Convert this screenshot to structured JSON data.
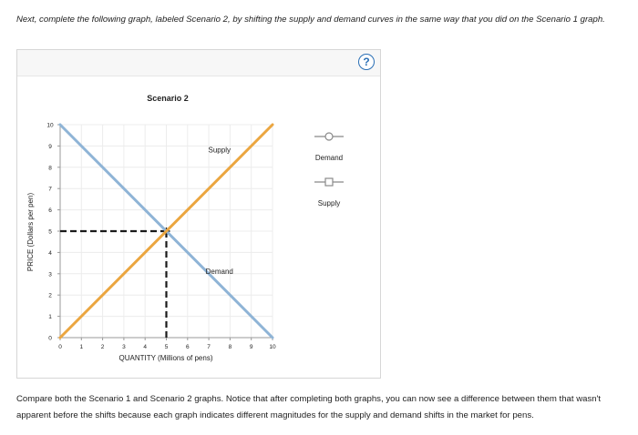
{
  "instructions": "Next, complete the following graph, labeled Scenario 2, by shifting the supply and demand curves in the same way that you did on the Scenario 1 graph.",
  "help_button": "?",
  "footer": "Compare both the Scenario 1 and Scenario 2 graphs. Notice that after completing both graphs, you can now see a difference between them that wasn't apparent before the shifts because each graph indicates different magnitudes for the supply and demand shifts in the market for pens.",
  "colors": {
    "demand": "#8fb4d6",
    "supply": "#eba640",
    "dashed": "#1a1a1a",
    "grid": "#ececec",
    "axis": "#999999"
  },
  "chart_data": {
    "type": "line",
    "title": "Scenario 2",
    "xlabel": "QUANTITY (Millions of pens)",
    "ylabel": "PRICE (Dollars per pen)",
    "xlim": [
      0,
      10
    ],
    "ylim": [
      0,
      10
    ],
    "x_ticks": [
      0,
      1,
      2,
      3,
      4,
      5,
      6,
      7,
      8,
      9,
      10
    ],
    "y_ticks": [
      0,
      1,
      2,
      3,
      4,
      5,
      6,
      7,
      8,
      9,
      10
    ],
    "grid": true,
    "series": [
      {
        "name": "Demand",
        "x": [
          0,
          10
        ],
        "y": [
          10,
          0
        ],
        "color": "#8fb4d6",
        "label": "Demand",
        "label_at": [
          7.5,
          3
        ]
      },
      {
        "name": "Supply",
        "x": [
          0,
          10
        ],
        "y": [
          0,
          10
        ],
        "color": "#eba640",
        "label": "Supply",
        "label_at": [
          7.5,
          8.7
        ]
      }
    ],
    "equilibrium": {
      "x": 5,
      "y": 5
    },
    "legend": {
      "placement": "right",
      "items": [
        {
          "label": "Demand",
          "marker": "circle",
          "color": "#8fb4d6"
        },
        {
          "label": "Supply",
          "marker": "square",
          "color": "#eba640"
        }
      ]
    }
  }
}
